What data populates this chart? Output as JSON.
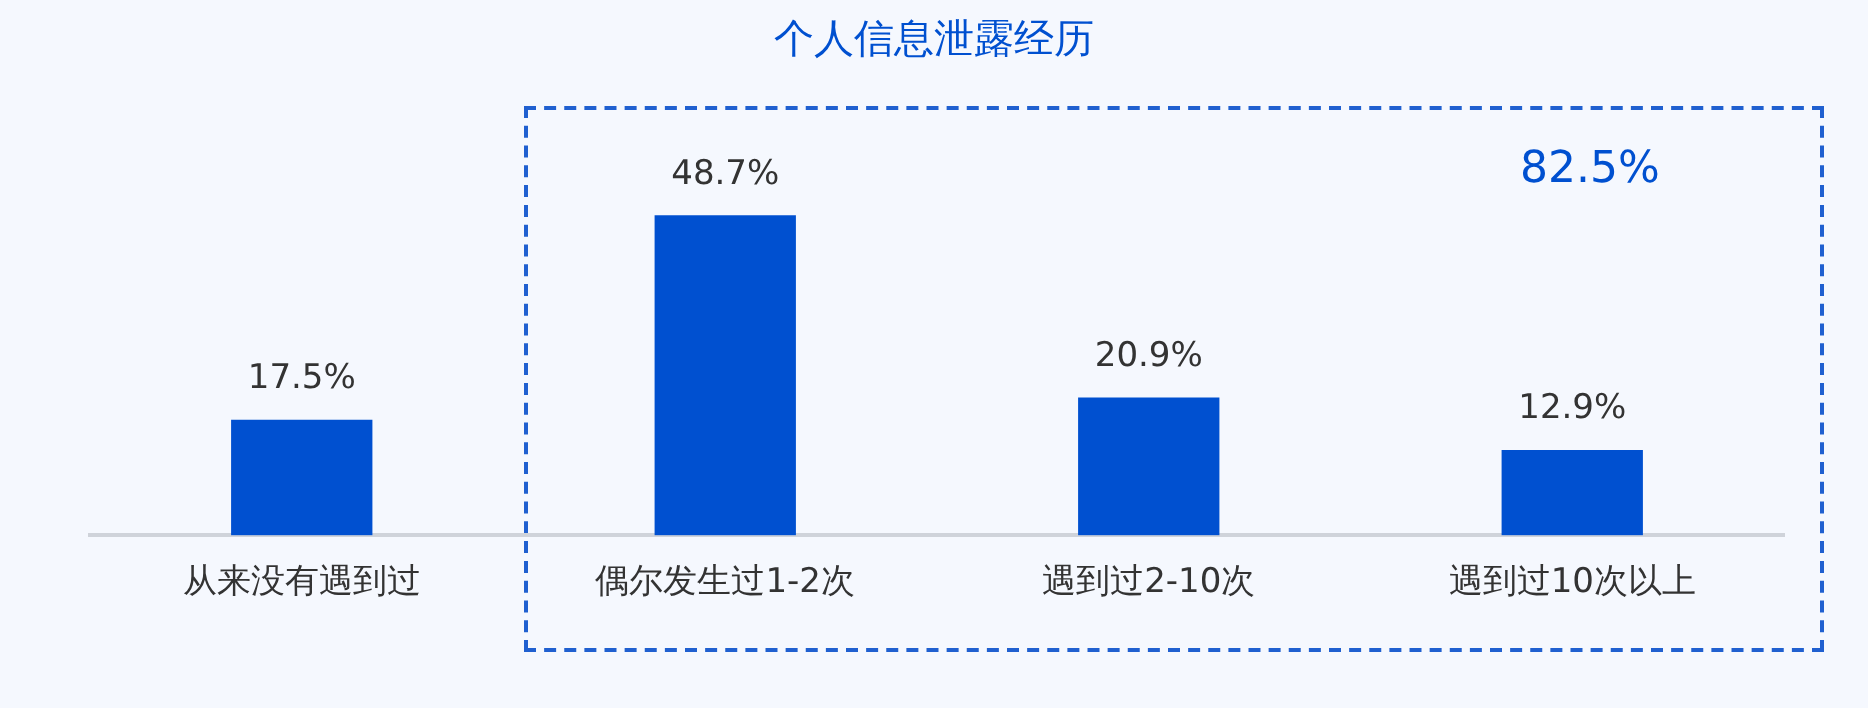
{
  "chart_data": {
    "type": "bar",
    "title": "个人信息泄露经历",
    "categories": [
      "从来没有遇到过",
      "偶尔发生过1-2次",
      "遇到过2-10次",
      "遇到过10次以上"
    ],
    "values": [
      17.5,
      48.7,
      20.9,
      12.9
    ],
    "value_labels": [
      "17.5%",
      "48.7%",
      "20.9%",
      "12.9%"
    ],
    "color": "#0050d0",
    "annotations": [
      "82.5%"
    ],
    "grid": false,
    "legend": false,
    "tick_labels": "x"
  }
}
